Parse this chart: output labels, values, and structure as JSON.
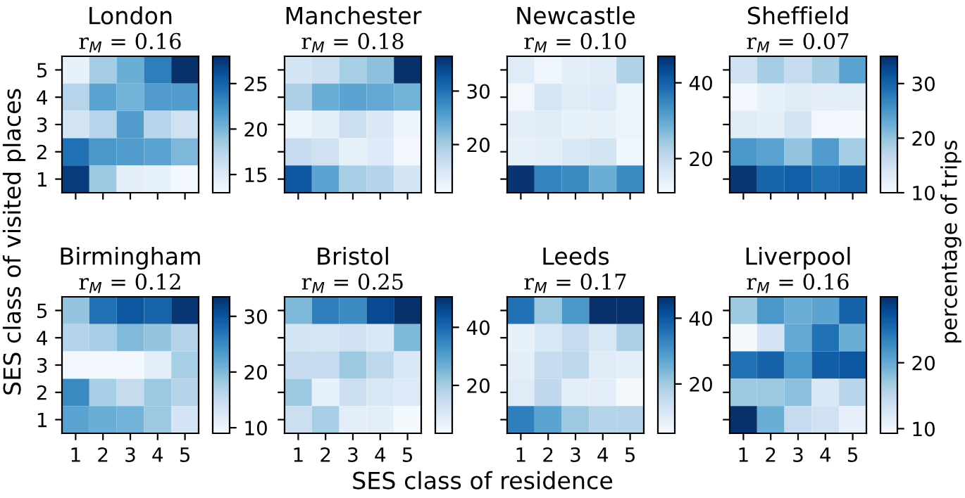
{
  "chart_data": [
    {
      "type": "heatmap",
      "title": "London",
      "subtitle": "r$_{M}$ = 0.16",
      "ylabel": "SES class of visited places",
      "tick_labels": "y",
      "categories": [
        "1",
        "2",
        "3",
        "4",
        "5"
      ],
      "y_categories": [
        "5",
        "4",
        "3",
        "2",
        "1"
      ],
      "clim": [
        13,
        28
      ],
      "cticks": [
        15,
        20,
        25
      ],
      "cells": [
        [
          14.2,
          18.3,
          20.5,
          23.5,
          28
        ],
        [
          17.5,
          21.3,
          20.2,
          21.7,
          21.7
        ],
        [
          15.7,
          17.5,
          21.7,
          17.5,
          16
        ],
        [
          24.3,
          22,
          21.7,
          21.3,
          19.8
        ],
        [
          27.3,
          18.7,
          14.5,
          14.2,
          13.3
        ]
      ]
    },
    {
      "type": "heatmap",
      "title": "Manchester",
      "subtitle": "r$_{M}$ = 0.18",
      "tick_labels": false,
      "categories": [
        "1",
        "2",
        "3",
        "4",
        "5"
      ],
      "y_categories": [
        "5",
        "4",
        "3",
        "2",
        "1"
      ],
      "clim": [
        11,
        36.5
      ],
      "cticks": [
        20,
        30
      ],
      "cells": [
        [
          15.6,
          16.6,
          19.9,
          21.7,
          36.5
        ],
        [
          19.4,
          23.8,
          25,
          24.3,
          23.2
        ],
        [
          12.3,
          13.6,
          16.6,
          14.6,
          12.3
        ],
        [
          17.4,
          16.1,
          13,
          14.3,
          11.5
        ],
        [
          32.7,
          25,
          19.9,
          18.7,
          15.6
        ]
      ]
    },
    {
      "type": "heatmap",
      "title": "Newcastle",
      "subtitle": "r$_{M}$ = 0.10",
      "tick_labels": false,
      "categories": [
        "1",
        "2",
        "3",
        "4",
        "5"
      ],
      "y_categories": [
        "5",
        "4",
        "3",
        "2",
        "1"
      ],
      "clim": [
        11,
        47
      ],
      "cticks": [
        20,
        40
      ],
      "cells": [
        [
          15.3,
          12.8,
          14.6,
          15.3,
          22.5
        ],
        [
          12,
          16.8,
          15.3,
          16,
          13.2
        ],
        [
          14.6,
          15.3,
          13.9,
          14.2,
          13.2
        ],
        [
          14.2,
          14.6,
          16.4,
          17.5,
          12.4
        ],
        [
          46.3,
          35.5,
          34.4,
          29,
          34.4
        ]
      ]
    },
    {
      "type": "heatmap",
      "title": "Sheffield",
      "subtitle": "r$_{M}$ = 0.07",
      "clabel": "percentage of trips",
      "tick_labels": false,
      "categories": [
        "1",
        "2",
        "3",
        "4",
        "5"
      ],
      "y_categories": [
        "5",
        "4",
        "3",
        "2",
        "1"
      ],
      "clim": [
        10,
        35
      ],
      "cticks": [
        10,
        20,
        30
      ],
      "cells": [
        [
          15,
          18.8,
          16.3,
          18.8,
          23.8
        ],
        [
          10.8,
          12,
          13,
          12.5,
          12.5
        ],
        [
          13,
          12.5,
          14.5,
          10.8,
          10.5
        ],
        [
          25,
          23.8,
          20,
          24.5,
          18.8
        ],
        [
          34.5,
          30,
          30.5,
          28.8,
          30
        ]
      ]
    },
    {
      "type": "heatmap",
      "title": "Birmingham",
      "subtitle": "r$_{M}$ = 0.12",
      "categories": [
        "1",
        "2",
        "3",
        "4",
        "5"
      ],
      "y_categories": [
        "5",
        "4",
        "3",
        "2",
        "1"
      ],
      "clim": [
        9,
        33.5
      ],
      "cticks": [
        10,
        20,
        30
      ],
      "cells": [
        [
          18.8,
          27.4,
          29.8,
          28.6,
          33
        ],
        [
          16.4,
          17.6,
          20,
          18.8,
          16.4
        ],
        [
          9.7,
          9.7,
          9.5,
          11.5,
          17.6
        ],
        [
          24.9,
          17.6,
          15.1,
          18.3,
          16.4
        ],
        [
          22.5,
          21.3,
          20.8,
          18.3,
          13.4
        ]
      ]
    },
    {
      "type": "heatmap",
      "title": "Bristol",
      "subtitle": "r$_{M}$ = 0.25",
      "xlabel": "SES class of residence",
      "tick_labels": "x",
      "categories": [
        "1",
        "2",
        "3",
        "4",
        "5"
      ],
      "y_categories": [
        "5",
        "4",
        "3",
        "2",
        "1"
      ],
      "clim": [
        3.5,
        50.5
      ],
      "cticks": [
        20,
        40
      ],
      "cells": [
        [
          24.7,
          36.4,
          34,
          45.8,
          50.5
        ],
        [
          12,
          11.5,
          12.9,
          10.5,
          24.7
        ],
        [
          15.3,
          15.3,
          21.4,
          16.7,
          10.5
        ],
        [
          21.4,
          7.3,
          13.8,
          10.5,
          10
        ],
        [
          13.8,
          20,
          8.2,
          8.2,
          4.4
        ]
      ]
    },
    {
      "type": "heatmap",
      "title": "Leeds",
      "subtitle": "r$_{M}$ = 0.17",
      "tick_labels": "x",
      "categories": [
        "1",
        "2",
        "3",
        "4",
        "5"
      ],
      "y_categories": [
        "5",
        "4",
        "3",
        "2",
        "1"
      ],
      "clim": [
        5,
        46.5
      ],
      "cticks": [
        20,
        40
      ],
      "cells": [
        [
          36,
          20.8,
          29.9,
          46.5,
          46.5
        ],
        [
          8.3,
          11.2,
          15.4,
          11.2,
          18.7
        ],
        [
          9.2,
          15.4,
          16.6,
          10,
          9.2
        ],
        [
          10,
          16.2,
          9.2,
          9.2,
          5.8
        ],
        [
          34,
          27.8,
          20.8,
          17.5,
          17.5
        ]
      ]
    },
    {
      "type": "heatmap",
      "title": "Liverpool",
      "subtitle": "r$_{M}$ = 0.16",
      "tick_labels": "x",
      "categories": [
        "1",
        "2",
        "3",
        "4",
        "5"
      ],
      "y_categories": [
        "5",
        "4",
        "3",
        "2",
        "1"
      ],
      "clim": [
        9.3,
        30
      ],
      "cticks": [
        10,
        20
      ],
      "cells": [
        [
          17.2,
          21.7,
          19.7,
          20.7,
          25.9
        ],
        [
          9.7,
          13,
          20.1,
          24.8,
          19.7
        ],
        [
          24.8,
          25.9,
          21.7,
          26.3,
          26.9
        ],
        [
          17.2,
          17.2,
          18,
          12.4,
          15.5
        ],
        [
          30,
          19.7,
          14.5,
          13.4,
          11
        ]
      ]
    }
  ]
}
